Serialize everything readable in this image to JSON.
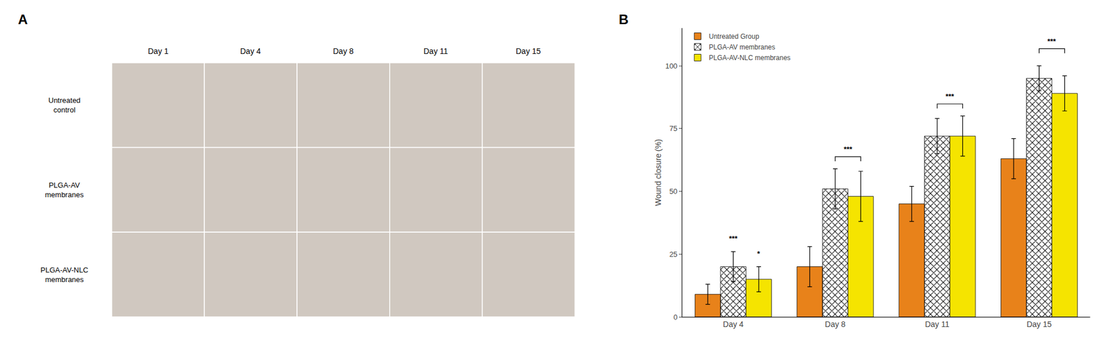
{
  "chart_data": [
    {
      "type": "grid",
      "title": "A",
      "categories": [
        "Day 1",
        "Day 4",
        "Day 8",
        "Day 11",
        "Day 15"
      ],
      "rows": [
        "Untreated\ncontrol",
        "PLGA-AV\nmembranes",
        "PLGA-AV-NLC\nmembranes"
      ],
      "color": "#D0C8C0"
    },
    {
      "type": "bar",
      "title": "B",
      "categories": [
        "Day 4",
        "Day 8",
        "Day 11",
        "Day 15"
      ],
      "series": [
        {
          "name": "Untreated Group",
          "color": "#E8821A",
          "values": [
            9,
            20,
            45,
            63
          ],
          "errors": [
            4,
            8,
            7,
            8
          ]
        },
        {
          "name": "PLGA-AV membranes",
          "color": "#E02020",
          "marker": "x",
          "values": [
            20,
            51,
            72,
            95
          ],
          "errors": [
            6,
            8,
            7,
            5
          ]
        },
        {
          "name": "PLGA-AV-NLC membranes",
          "color": "#F5E400",
          "values": [
            15,
            48,
            72,
            89
          ],
          "errors": [
            5,
            10,
            8,
            7
          ]
        }
      ],
      "ylabel": "Wound closure (%)",
      "ylim": [
        0,
        115
      ],
      "yticks": [
        0,
        25,
        50,
        75,
        100
      ],
      "grid": false,
      "legend": "upper left",
      "annotations": [
        {
          "text": "***",
          "category": "Day 4",
          "series": [
            "PLGA-AV membranes"
          ],
          "y": 29
        },
        {
          "text": "*",
          "category": "Day 4",
          "series": [
            "PLGA-AV-NLC membranes"
          ],
          "y": 23
        },
        {
          "text": "***",
          "category": "Day 8",
          "series": [
            "PLGA-AV membranes",
            "PLGA-AV-NLC membranes"
          ],
          "y": 62
        },
        {
          "text": "***",
          "category": "Day 11",
          "series": [
            "PLGA-AV membranes",
            "PLGA-AV-NLC membranes"
          ],
          "y": 83
        },
        {
          "text": "***",
          "category": "Day 15",
          "series": [
            "PLGA-AV membranes",
            "PLGA-AV-NLC membranes"
          ],
          "y": 105
        }
      ]
    }
  ]
}
